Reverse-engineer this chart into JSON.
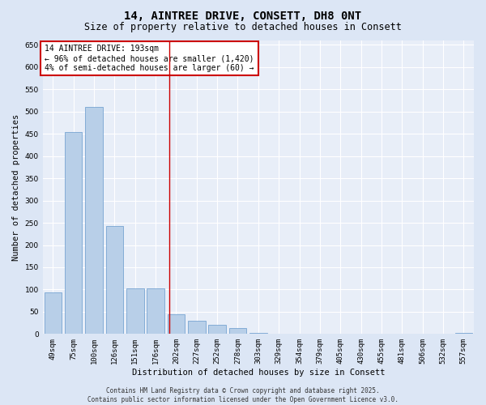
{
  "title": "14, AINTREE DRIVE, CONSETT, DH8 0NT",
  "subtitle": "Size of property relative to detached houses in Consett",
  "xlabel": "Distribution of detached houses by size in Consett",
  "ylabel": "Number of detached properties",
  "footer_line1": "Contains HM Land Registry data © Crown copyright and database right 2025.",
  "footer_line2": "Contains public sector information licensed under the Open Government Licence v3.0.",
  "categories": [
    "49sqm",
    "75sqm",
    "100sqm",
    "126sqm",
    "151sqm",
    "176sqm",
    "202sqm",
    "227sqm",
    "252sqm",
    "278sqm",
    "303sqm",
    "329sqm",
    "354sqm",
    "379sqm",
    "405sqm",
    "430sqm",
    "455sqm",
    "481sqm",
    "506sqm",
    "532sqm",
    "557sqm"
  ],
  "values": [
    93,
    455,
    510,
    243,
    103,
    103,
    45,
    30,
    20,
    13,
    2,
    1,
    1,
    0,
    0,
    0,
    0,
    0,
    0,
    0,
    2
  ],
  "bar_color": "#b8cfe8",
  "bar_edge_color": "#6699cc",
  "annotation_title": "14 AINTREE DRIVE: 193sqm",
  "annotation_line1": "← 96% of detached houses are smaller (1,420)",
  "annotation_line2": "4% of semi-detached houses are larger (60) →",
  "annotation_box_facecolor": "#ffffff",
  "annotation_box_edgecolor": "#cc0000",
  "vline_color": "#cc0000",
  "ylim": [
    0,
    660
  ],
  "yticks": [
    0,
    50,
    100,
    150,
    200,
    250,
    300,
    350,
    400,
    450,
    500,
    550,
    600,
    650
  ],
  "bg_color": "#dce6f5",
  "plot_bg_color": "#e8eef8",
  "grid_color": "#ffffff",
  "title_fontsize": 10,
  "subtitle_fontsize": 8.5,
  "tick_fontsize": 6.5,
  "ylabel_fontsize": 7.5,
  "xlabel_fontsize": 7.5,
  "annotation_fontsize": 7,
  "footer_fontsize": 5.5
}
